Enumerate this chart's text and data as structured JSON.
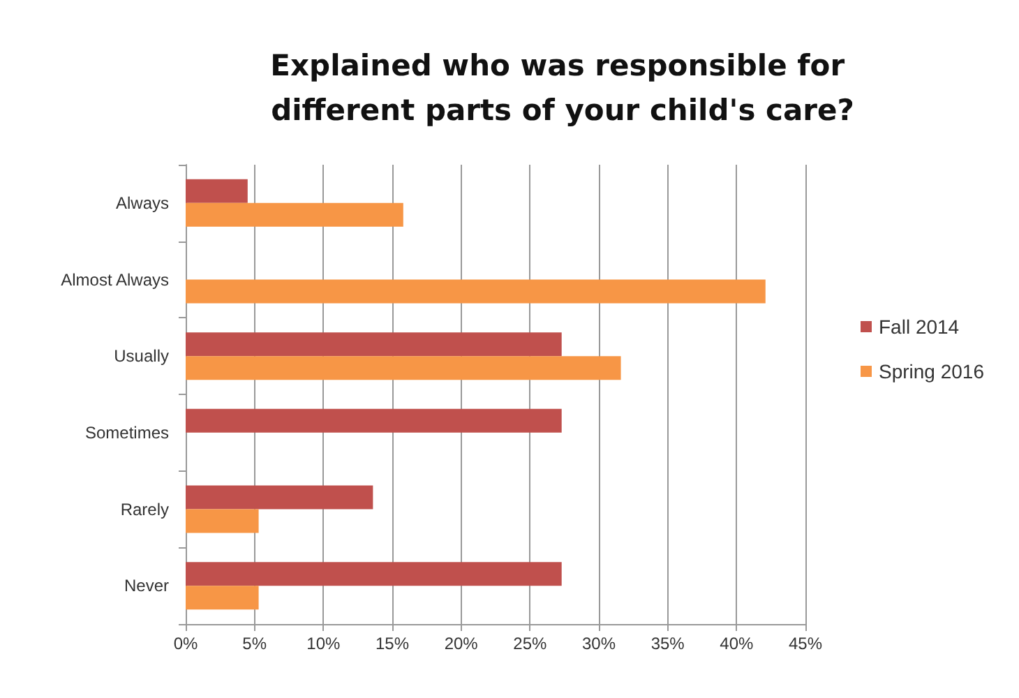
{
  "chart_data": {
    "type": "bar",
    "orientation": "horizontal",
    "title": "Explained who was responsible for different parts of your child's care?",
    "categories": [
      "Always",
      "Almost Always",
      "Usually",
      "Sometimes",
      "Rarely",
      "Never"
    ],
    "series": [
      {
        "name": "Fall 2014",
        "color": "#c0504d",
        "values": [
          4.5,
          0,
          27.3,
          27.3,
          13.6,
          27.3
        ]
      },
      {
        "name": "Spring 2016",
        "color": "#f79646",
        "values": [
          15.8,
          42.1,
          31.6,
          0,
          5.3,
          5.3
        ]
      }
    ],
    "xlim": [
      0,
      45
    ],
    "xticks": [
      {
        "value": 0,
        "label": "0%"
      },
      {
        "value": 5,
        "label": "5%"
      },
      {
        "value": 10,
        "label": "10%"
      },
      {
        "value": 15,
        "label": "15%"
      },
      {
        "value": 20,
        "label": "20%"
      },
      {
        "value": 25,
        "label": "25%"
      },
      {
        "value": 30,
        "label": "30%"
      },
      {
        "value": 35,
        "label": "35%"
      },
      {
        "value": 40,
        "label": "40%"
      },
      {
        "value": 45,
        "label": "45%"
      }
    ],
    "grid": "x",
    "legend": "right"
  }
}
